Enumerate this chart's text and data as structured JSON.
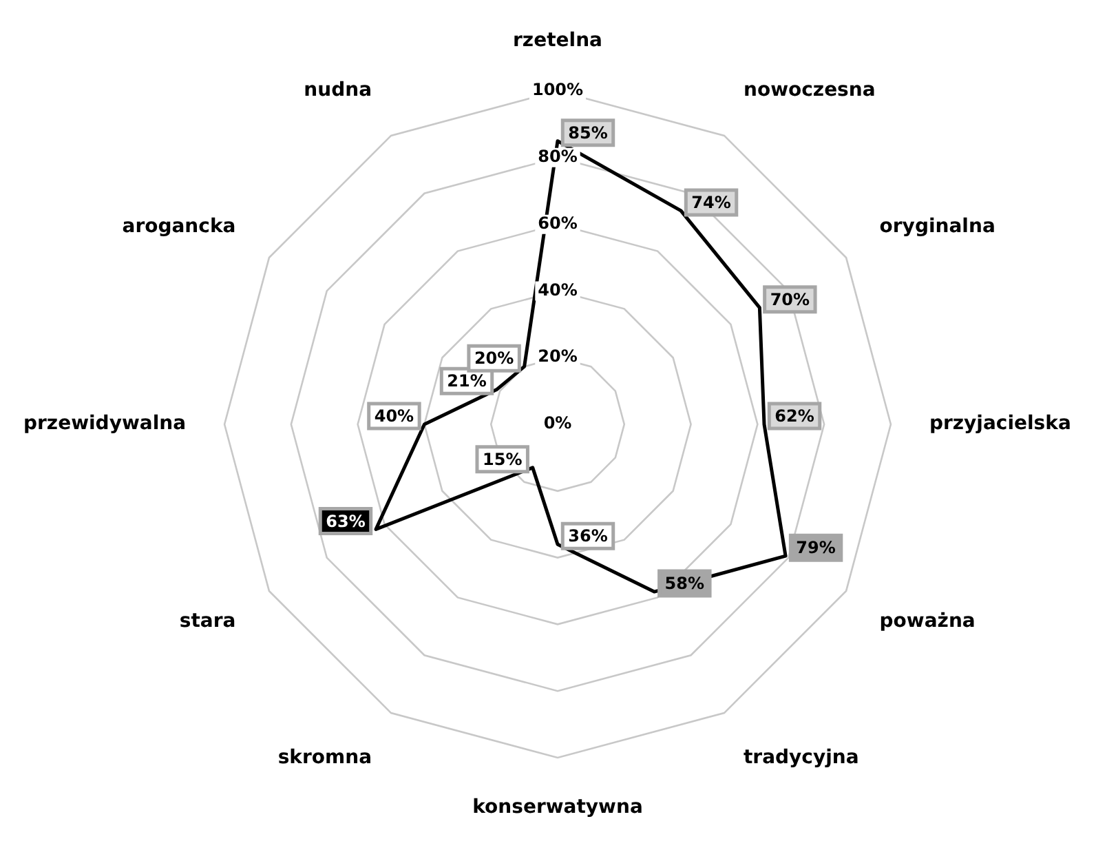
{
  "chart_data": {
    "type": "radar",
    "categories": [
      "rzetelna",
      "nowoczesna",
      "oryginalna",
      "przyjacielska",
      "poważna",
      "tradycyjna",
      "konserwatywna",
      "skromna",
      "stara",
      "przewidywalna",
      "arogancka",
      "nudna"
    ],
    "series": [
      {
        "color": "#000000",
        "values": [
          85,
          74,
          70,
          62,
          79,
          58,
          36,
          15,
          63,
          40,
          21,
          20
        ],
        "colors": [
          "#d9d9d9",
          "#d9d9d9",
          "#d9d9d9",
          "#d9d9d9",
          "#a6a6a6",
          "#a6a6a6",
          "#ffffff",
          "#ffffff",
          "#000000",
          "#ffffff",
          "#ffffff",
          "#ffffff"
        ]
      }
    ],
    "ylim": [
      0,
      100
    ],
    "yticks": [
      {
        "value": 0,
        "label": "0%"
      },
      {
        "value": 20,
        "label": "20%"
      },
      {
        "value": 40,
        "label": "40%"
      },
      {
        "value": 60,
        "label": "60%"
      },
      {
        "value": 80,
        "label": "80%"
      },
      {
        "value": 100,
        "label": "100%"
      }
    ],
    "value_labels": [
      "85%",
      "74%",
      "70%",
      "62%",
      "79%",
      "58%",
      "36%",
      "15%",
      "63%",
      "40%",
      "21%",
      "20%"
    ],
    "grid": true,
    "legend": false,
    "line_style": "solid"
  }
}
